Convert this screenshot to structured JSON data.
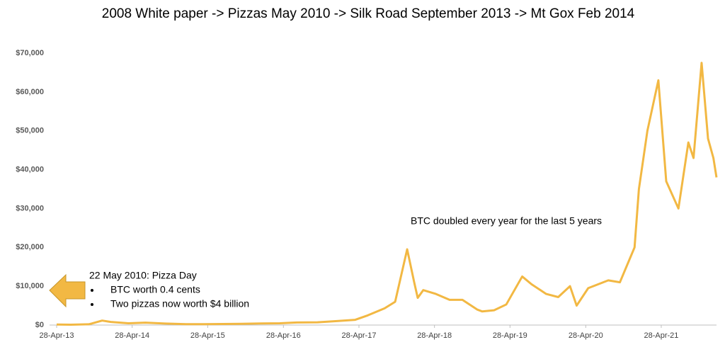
{
  "chart_data": {
    "type": "line",
    "title": "2008 White paper -> Pizzas May 2010 -> Silk Road September 2013 -> Mt Gox Feb 2014",
    "x": [
      "2013-04-28",
      "2013-07-05",
      "2013-10-01",
      "2013-12-04",
      "2014-01-15",
      "2014-04-10",
      "2014-07-01",
      "2014-10-05",
      "2015-01-14",
      "2015-04-10",
      "2015-07-10",
      "2015-10-10",
      "2016-01-10",
      "2016-04-10",
      "2016-07-01",
      "2016-10-10",
      "2017-01-05",
      "2017-04-10",
      "2017-06-10",
      "2017-08-30",
      "2017-10-20",
      "2017-12-17",
      "2018-01-20",
      "2018-02-06",
      "2018-03-05",
      "2018-05-05",
      "2018-07-10",
      "2018-09-10",
      "2018-11-20",
      "2018-12-15",
      "2019-02-10",
      "2019-04-10",
      "2019-06-26",
      "2019-08-10",
      "2019-10-20",
      "2019-12-17",
      "2020-02-12",
      "2020-03-15",
      "2020-05-10",
      "2020-08-15",
      "2020-10-10",
      "2020-12-20",
      "2021-01-10",
      "2021-02-20",
      "2021-04-14",
      "2021-05-22",
      "2021-07-20",
      "2021-09-06",
      "2021-10-01",
      "2021-11-09",
      "2021-12-10",
      "2022-01-05",
      "2022-01-20"
    ],
    "series": [
      {
        "name": "BTC",
        "color": "#F2B843",
        "values": [
          135,
          90,
          200,
          1150,
          800,
          450,
          620,
          380,
          220,
          230,
          280,
          310,
          400,
          450,
          650,
          700,
          1000,
          1350,
          2500,
          4300,
          6000,
          19500,
          11000,
          7000,
          9000,
          8000,
          6500,
          6500,
          4000,
          3500,
          3800,
          5300,
          12500,
          10500,
          8000,
          7200,
          10000,
          5000,
          9500,
          11500,
          11000,
          20000,
          35000,
          50000,
          63000,
          37000,
          30000,
          47000,
          43000,
          67500,
          48000,
          43000,
          38000
        ]
      }
    ],
    "xlim": [
      "2013-04-28",
      "2022-01-20"
    ],
    "xticks": [
      {
        "value": "2013-04-28",
        "label": "28-Apr-13"
      },
      {
        "value": "2014-04-28",
        "label": "28-Apr-14"
      },
      {
        "value": "2015-04-28",
        "label": "28-Apr-15"
      },
      {
        "value": "2016-04-28",
        "label": "28-Apr-16"
      },
      {
        "value": "2017-04-28",
        "label": "28-Apr-17"
      },
      {
        "value": "2018-04-28",
        "label": "28-Apr-18"
      },
      {
        "value": "2019-04-28",
        "label": "28-Apr-19"
      },
      {
        "value": "2020-04-28",
        "label": "28-Apr-20"
      },
      {
        "value": "2021-04-28",
        "label": "28-Apr-21"
      }
    ],
    "ylim": [
      0,
      70000
    ],
    "yticks": [
      {
        "value": 0,
        "label": "$0"
      },
      {
        "value": 10000,
        "label": "$10,000"
      },
      {
        "value": 20000,
        "label": "$20,000"
      },
      {
        "value": 30000,
        "label": "$30,000"
      },
      {
        "value": 40000,
        "label": "$40,000"
      },
      {
        "value": 50000,
        "label": "$50,000"
      },
      {
        "value": 60000,
        "label": "$60,000"
      },
      {
        "value": 70000,
        "label": "$70,000"
      }
    ],
    "annotation": "BTC doubled every year for the last 5 years",
    "callout": {
      "title": "22 May 2010: Pizza Day",
      "items": [
        "BTC worth 0.4 cents",
        "Two pizzas now worth $4 billion"
      ]
    }
  }
}
